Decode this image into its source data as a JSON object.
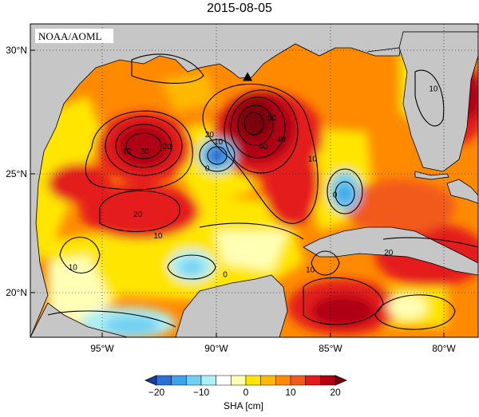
{
  "title": "2015-08-05",
  "credit": "NOAA/AOML",
  "map": {
    "lon_range": [
      -98,
      -78
    ],
    "lat_range": [
      18,
      31
    ],
    "lat_ticks": [
      {
        "value": 30,
        "label": "30°N"
      },
      {
        "value": 25,
        "label": "25°N"
      },
      {
        "value": 20,
        "label": "20°N"
      }
    ],
    "lon_ticks": [
      {
        "value": -95,
        "label": "95°W"
      },
      {
        "value": -90,
        "label": "90°W"
      },
      {
        "value": -85,
        "label": "85°W"
      },
      {
        "value": -80,
        "label": "80°W"
      }
    ],
    "land_color": "#c6c6c6",
    "marker": {
      "name": "station-triangle",
      "lon": -88.3,
      "lat": 28.8
    },
    "contour_labels": [
      {
        "text": "40",
        "lon": -93.7,
        "lat": 25.6
      },
      {
        "text": "30",
        "lon": -92.9,
        "lat": 25.6
      },
      {
        "text": "20",
        "lon": -91.9,
        "lat": 25.8
      },
      {
        "text": "0",
        "lon": -90.1,
        "lat": 24.9
      },
      {
        "text": "20",
        "lon": -90.0,
        "lat": 26.3
      },
      {
        "text": "10",
        "lon": -89.6,
        "lat": 26.0
      },
      {
        "text": "60",
        "lon": -87.6,
        "lat": 25.8
      },
      {
        "text": "50",
        "lon": -87.2,
        "lat": 27.0
      },
      {
        "text": "40",
        "lon": -86.8,
        "lat": 26.1
      },
      {
        "text": "10",
        "lon": -85.4,
        "lat": 25.3
      },
      {
        "text": "0",
        "lon": -84.4,
        "lat": 23.8
      },
      {
        "text": "10",
        "lon": -80.0,
        "lat": 28.2
      },
      {
        "text": "20",
        "lon": -93.2,
        "lat": 23.0
      },
      {
        "text": "10",
        "lon": -92.3,
        "lat": 22.1
      },
      {
        "text": "10",
        "lon": -96.1,
        "lat": 20.8
      },
      {
        "text": "0",
        "lon": -89.3,
        "lat": 20.5
      },
      {
        "text": "10",
        "lon": -85.5,
        "lat": 20.7
      },
      {
        "text": "20",
        "lon": -82.0,
        "lat": 21.4
      }
    ]
  },
  "colorbar": {
    "label": "SHA [cm]",
    "ticks": [
      -20,
      -10,
      0,
      10,
      20
    ],
    "tick_labels": [
      "−20",
      "−10",
      "0",
      "10",
      "20"
    ],
    "colors": [
      "#1b3d9e",
      "#2a6fd6",
      "#3aa3ea",
      "#6fd0f3",
      "#aef0f8",
      "#ffffff",
      "#ffffb5",
      "#ffe600",
      "#ffb800",
      "#ff8a00",
      "#f25a1a",
      "#e41a1c",
      "#b00012",
      "#7a000c"
    ]
  },
  "chart_data": {
    "type": "heatmap",
    "title": "2015-08-05",
    "variable": "SHA [cm]",
    "scale_range": [
      -20,
      20
    ],
    "features": [
      {
        "feature": "anticyclonic-eddy-western-gulf",
        "center_lon": -93.2,
        "center_lat": 26.2,
        "peak_sha": 45
      },
      {
        "feature": "loop-current-core",
        "center_lon": -87.5,
        "center_lat": 26.8,
        "peak_sha": 65
      },
      {
        "feature": "cyclonic-eddy-central-gulf",
        "center_lon": -89.7,
        "center_lat": 25.6,
        "peak_sha": -12
      },
      {
        "feature": "cyclonic-eddy-east-of-loop",
        "center_lon": -84.3,
        "center_lat": 24.4,
        "peak_sha": -10
      },
      {
        "feature": "cyclonic-eddy-bay-of-campeche",
        "center_lon": -91.3,
        "center_lat": 21.0,
        "peak_sha": -6
      },
      {
        "feature": "cyclonic-eddy-southwest-gulf",
        "center_lon": -94.5,
        "center_lat": 18.8,
        "peak_sha": -8
      }
    ]
  }
}
